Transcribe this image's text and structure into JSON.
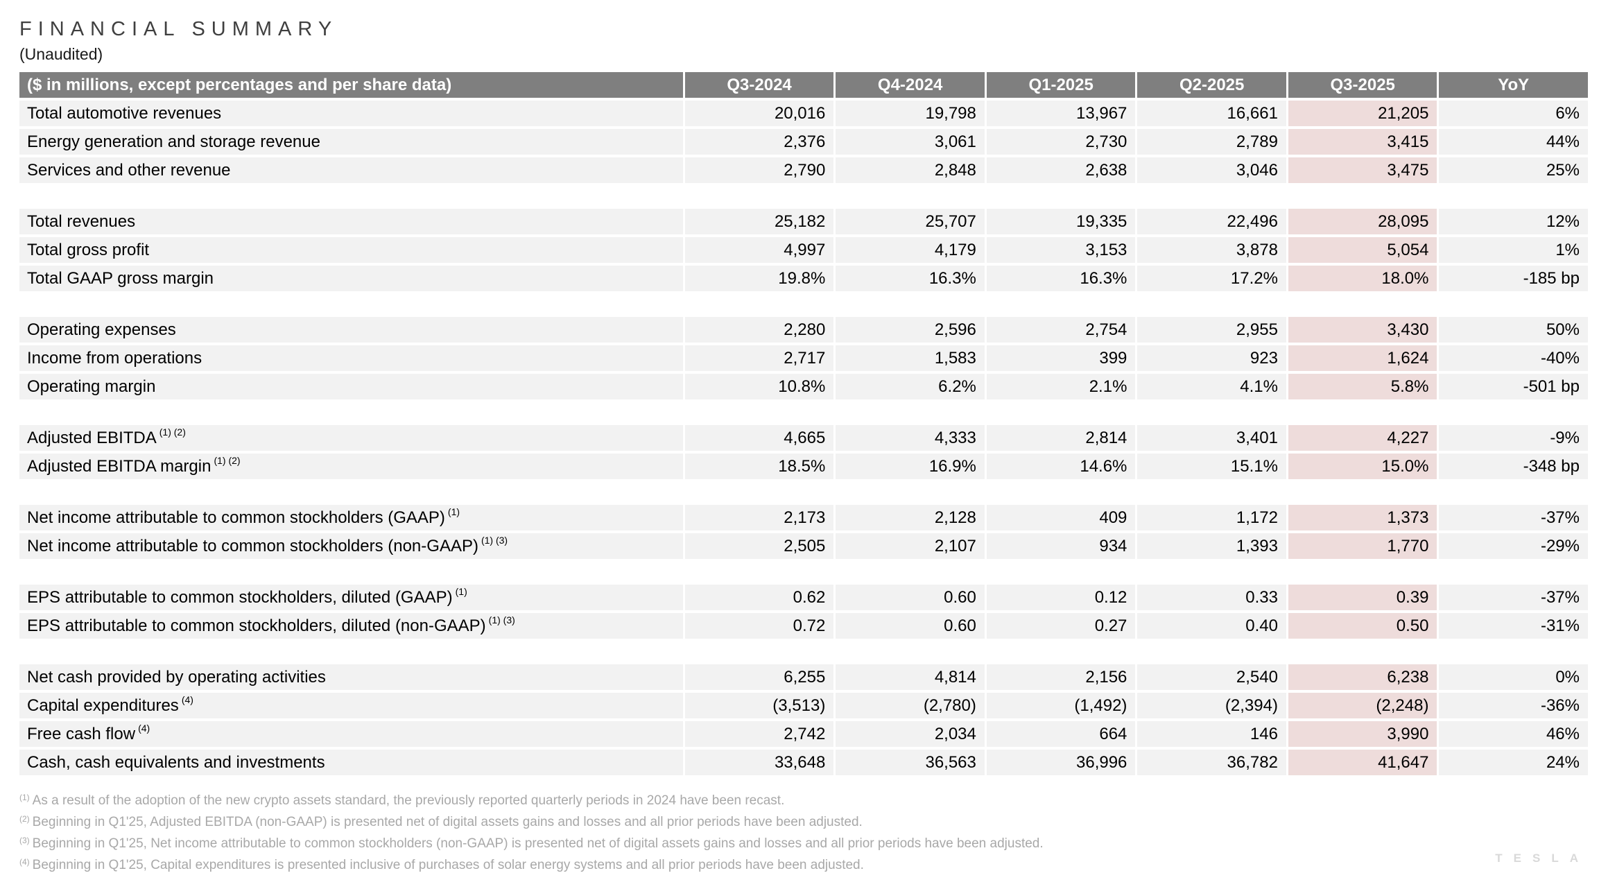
{
  "title": "FINANCIAL SUMMARY",
  "subtitle": "(Unaudited)",
  "watermark": "TESLA",
  "colors": {
    "header_bg": "#7f7f7f",
    "header_text": "#ffffff",
    "row_bg": "#f2f2f2",
    "highlight_bg": "#eedcdb",
    "footnote_text": "#a8a8a8",
    "title_text": "#3f3f3f",
    "watermark_text": "#d9d9d9"
  },
  "table": {
    "header_label": "($ in millions, except percentages and per share data)",
    "columns": [
      "Q3-2024",
      "Q4-2024",
      "Q1-2025",
      "Q2-2025",
      "Q3-2025",
      "YoY"
    ],
    "highlight_column": "Q3-2025",
    "highlight_index": 4,
    "sections": [
      {
        "rows": [
          {
            "label": "Total automotive revenues",
            "sup": "",
            "values": [
              "20,016",
              "19,798",
              "13,967",
              "16,661",
              "21,205",
              "6%"
            ]
          },
          {
            "label": "Energy generation and storage revenue",
            "sup": "",
            "values": [
              "2,376",
              "3,061",
              "2,730",
              "2,789",
              "3,415",
              "44%"
            ]
          },
          {
            "label": "Services and other revenue",
            "sup": "",
            "values": [
              "2,790",
              "2,848",
              "2,638",
              "3,046",
              "3,475",
              "25%"
            ]
          }
        ]
      },
      {
        "rows": [
          {
            "label": "Total revenues",
            "sup": "",
            "values": [
              "25,182",
              "25,707",
              "19,335",
              "22,496",
              "28,095",
              "12%"
            ]
          },
          {
            "label": "Total gross profit",
            "sup": "",
            "values": [
              "4,997",
              "4,179",
              "3,153",
              "3,878",
              "5,054",
              "1%"
            ]
          },
          {
            "label": "Total GAAP gross margin",
            "sup": "",
            "values": [
              "19.8%",
              "16.3%",
              "16.3%",
              "17.2%",
              "18.0%",
              "-185 bp"
            ]
          }
        ]
      },
      {
        "rows": [
          {
            "label": "Operating expenses",
            "sup": "",
            "values": [
              "2,280",
              "2,596",
              "2,754",
              "2,955",
              "3,430",
              "50%"
            ]
          },
          {
            "label": "Income from operations",
            "sup": "",
            "values": [
              "2,717",
              "1,583",
              "399",
              "923",
              "1,624",
              "-40%"
            ]
          },
          {
            "label": "Operating margin",
            "sup": "",
            "values": [
              "10.8%",
              "6.2%",
              "2.1%",
              "4.1%",
              "5.8%",
              "-501 bp"
            ]
          }
        ]
      },
      {
        "rows": [
          {
            "label": "Adjusted EBITDA",
            "sup": "(1) (2)",
            "values": [
              "4,665",
              "4,333",
              "2,814",
              "3,401",
              "4,227",
              "-9%"
            ]
          },
          {
            "label": "Adjusted EBITDA margin",
            "sup": "(1) (2)",
            "values": [
              "18.5%",
              "16.9%",
              "14.6%",
              "15.1%",
              "15.0%",
              "-348 bp"
            ]
          }
        ]
      },
      {
        "rows": [
          {
            "label": "Net income attributable to common stockholders (GAAP)",
            "sup": "(1)",
            "values": [
              "2,173",
              "2,128",
              "409",
              "1,172",
              "1,373",
              "-37%"
            ]
          },
          {
            "label": "Net income attributable to common stockholders (non-GAAP)",
            "sup": "(1) (3)",
            "values": [
              "2,505",
              "2,107",
              "934",
              "1,393",
              "1,770",
              "-29%"
            ]
          }
        ]
      },
      {
        "rows": [
          {
            "label": "EPS attributable to common stockholders, diluted (GAAP)",
            "sup": "(1)",
            "values": [
              "0.62",
              "0.60",
              "0.12",
              "0.33",
              "0.39",
              "-37%"
            ]
          },
          {
            "label": "EPS attributable to common stockholders, diluted (non-GAAP)",
            "sup": "(1) (3)",
            "values": [
              "0.72",
              "0.60",
              "0.27",
              "0.40",
              "0.50",
              "-31%"
            ]
          }
        ]
      },
      {
        "rows": [
          {
            "label": "Net cash provided by operating activities",
            "sup": "",
            "values": [
              "6,255",
              "4,814",
              "2,156",
              "2,540",
              "6,238",
              "0%"
            ]
          },
          {
            "label": "Capital expenditures",
            "sup": "(4)",
            "values": [
              "(3,513)",
              "(2,780)",
              "(1,492)",
              "(2,394)",
              "(2,248)",
              "-36%"
            ]
          },
          {
            "label": "Free cash flow",
            "sup": "(4)",
            "values": [
              "2,742",
              "2,034",
              "664",
              "146",
              "3,990",
              "46%"
            ]
          },
          {
            "label": "Cash, cash equivalents and investments",
            "sup": "",
            "values": [
              "33,648",
              "36,563",
              "36,996",
              "36,782",
              "41,647",
              "24%"
            ]
          }
        ]
      }
    ]
  },
  "footnotes": [
    {
      "sup": "(1)",
      "text": "As a result of the adoption of the new crypto assets standard, the previously reported quarterly periods in 2024 have been recast."
    },
    {
      "sup": "(2)",
      "text": "Beginning in Q1'25, Adjusted EBITDA (non-GAAP) is presented net of digital assets gains and losses and all prior periods have been adjusted."
    },
    {
      "sup": "(3)",
      "text": "Beginning in Q1'25, Net income attributable to common stockholders (non-GAAP) is presented net of digital assets gains and losses and all prior periods have been adjusted."
    },
    {
      "sup": "(4)",
      "text": "Beginning in Q1'25, Capital expenditures is presented inclusive of purchases of solar energy systems and all prior periods have been adjusted."
    }
  ]
}
